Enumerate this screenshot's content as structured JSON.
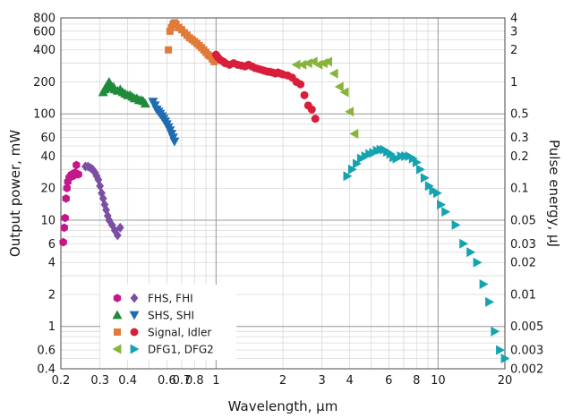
{
  "chart_data": {
    "type": "scatter",
    "xlabel": "Wavelength, µm",
    "ylabel": "Output power, mW",
    "y2label": "Pulse energy, µJ",
    "xscale": "log",
    "yscale": "log",
    "xlim": [
      0.2,
      20
    ],
    "ylim": [
      0.4,
      800
    ],
    "y2lim": [
      0.002,
      4
    ],
    "grid": true,
    "legend_position": "bottom-left",
    "xticks": [
      {
        "value": 0.2,
        "label": "0.2"
      },
      {
        "value": 0.3,
        "label": "0.3"
      },
      {
        "value": 0.4,
        "label": "0.4"
      },
      {
        "value": 0.6,
        "label": "0.6"
      },
      {
        "value": 0.7,
        "label": "0.7"
      },
      {
        "value": 0.8,
        "label": "0.8"
      },
      {
        "value": 1,
        "label": "1"
      },
      {
        "value": 2,
        "label": "2"
      },
      {
        "value": 3,
        "label": "3"
      },
      {
        "value": 4,
        "label": "4"
      },
      {
        "value": 6,
        "label": "6"
      },
      {
        "value": 8,
        "label": "8"
      },
      {
        "value": 10,
        "label": "10"
      },
      {
        "value": 20,
        "label": "20"
      }
    ],
    "yticks": [
      {
        "value": 0.4,
        "label": "0.4"
      },
      {
        "value": 0.6,
        "label": "0.6"
      },
      {
        "value": 1,
        "label": "1"
      },
      {
        "value": 2,
        "label": "2"
      },
      {
        "value": 4,
        "label": "4"
      },
      {
        "value": 6,
        "label": "6"
      },
      {
        "value": 10,
        "label": "10"
      },
      {
        "value": 20,
        "label": "20"
      },
      {
        "value": 40,
        "label": "40"
      },
      {
        "value": 60,
        "label": "60"
      },
      {
        "value": 100,
        "label": "100"
      },
      {
        "value": 200,
        "label": "200"
      },
      {
        "value": 400,
        "label": "400"
      },
      {
        "value": 600,
        "label": "600"
      },
      {
        "value": 800,
        "label": "800"
      }
    ],
    "y2ticks": [
      {
        "value": 0.002,
        "label": "0.002"
      },
      {
        "value": 0.003,
        "label": "0.003"
      },
      {
        "value": 0.005,
        "label": "0.005"
      },
      {
        "value": 0.01,
        "label": "0.01"
      },
      {
        "value": 0.02,
        "label": "0.02"
      },
      {
        "value": 0.03,
        "label": "0.03"
      },
      {
        "value": 0.05,
        "label": "0.05"
      },
      {
        "value": 0.1,
        "label": "0.1"
      },
      {
        "value": 0.2,
        "label": "0.2"
      },
      {
        "value": 0.3,
        "label": "0.3"
      },
      {
        "value": 0.5,
        "label": "0.5"
      },
      {
        "value": 1,
        "label": "1"
      },
      {
        "value": 2,
        "label": "2"
      },
      {
        "value": 3,
        "label": "3"
      },
      {
        "value": 4,
        "label": "4"
      }
    ],
    "legend": [
      {
        "label": "FHS, FHI",
        "markers": [
          {
            "shape": "hexagon",
            "color": "#c2188b"
          },
          {
            "shape": "diamond",
            "color": "#7b4fa3"
          }
        ]
      },
      {
        "label": "SHS, SHI",
        "markers": [
          {
            "shape": "triangle-up",
            "color": "#1f8a3a"
          },
          {
            "shape": "triangle-down",
            "color": "#1f6cb0"
          }
        ]
      },
      {
        "label": "Signal, Idler",
        "markers": [
          {
            "shape": "square",
            "color": "#e07b39"
          },
          {
            "shape": "circle",
            "color": "#d81e3a"
          }
        ]
      },
      {
        "label": "DFG1, DFG2",
        "markers": [
          {
            "shape": "triangle-left",
            "color": "#86b53a"
          },
          {
            "shape": "triangle-right",
            "color": "#14a3b0"
          }
        ]
      }
    ],
    "series": [
      {
        "marker": "hexagon",
        "color": "#c2188b",
        "x": [
          0.205,
          0.207,
          0.209,
          0.211,
          0.213,
          0.215,
          0.218,
          0.221,
          0.224,
          0.227,
          0.231,
          0.235,
          0.24
        ],
        "y": [
          6.2,
          8.5,
          10.5,
          16,
          20,
          23,
          25,
          26,
          27,
          26,
          28,
          33,
          27
        ]
      },
      {
        "marker": "diamond",
        "color": "#7b4fa3",
        "x": [
          0.258,
          0.265,
          0.272,
          0.278,
          0.285,
          0.29,
          0.295,
          0.3,
          0.305,
          0.31,
          0.315,
          0.32,
          0.325,
          0.33,
          0.34,
          0.35,
          0.36,
          0.37
        ],
        "y": [
          32,
          32,
          31,
          30,
          28,
          26,
          24,
          21,
          18,
          16,
          14,
          12.5,
          11,
          10,
          9,
          8,
          7.2,
          8.5
        ]
      },
      {
        "marker": "triangle-up",
        "color": "#1f8a3a",
        "x": [
          0.31,
          0.315,
          0.32,
          0.325,
          0.33,
          0.335,
          0.34,
          0.345,
          0.35,
          0.36,
          0.37,
          0.38,
          0.39,
          0.4,
          0.41,
          0.42,
          0.43,
          0.44,
          0.45,
          0.46,
          0.47,
          0.48
        ],
        "y": [
          160,
          170,
          180,
          190,
          200,
          185,
          175,
          180,
          170,
          165,
          170,
          160,
          155,
          150,
          150,
          145,
          140,
          140,
          135,
          135,
          132,
          125
        ]
      },
      {
        "marker": "triangle-down",
        "color": "#1f6cb0",
        "x": [
          0.52,
          0.53,
          0.54,
          0.55,
          0.56,
          0.57,
          0.58,
          0.59,
          0.6,
          0.61,
          0.62,
          0.63,
          0.64,
          0.65
        ],
        "y": [
          130,
          120,
          110,
          105,
          100,
          95,
          90,
          85,
          80,
          75,
          70,
          65,
          60,
          55
        ]
      },
      {
        "marker": "square",
        "color": "#e07b39",
        "x": [
          0.61,
          0.62,
          0.63,
          0.64,
          0.65,
          0.66,
          0.68,
          0.7,
          0.72,
          0.74,
          0.76,
          0.78,
          0.8,
          0.82,
          0.84,
          0.86,
          0.88,
          0.9,
          0.92,
          0.94,
          0.96,
          0.98
        ],
        "y": [
          400,
          600,
          650,
          700,
          720,
          700,
          650,
          620,
          580,
          550,
          520,
          500,
          480,
          460,
          440,
          420,
          400,
          380,
          360,
          350,
          330,
          310
        ]
      },
      {
        "marker": "circle",
        "color": "#d81e3a",
        "x": [
          1.0,
          1.02,
          1.05,
          1.08,
          1.1,
          1.15,
          1.2,
          1.25,
          1.3,
          1.35,
          1.4,
          1.45,
          1.5,
          1.55,
          1.6,
          1.65,
          1.7,
          1.75,
          1.8,
          1.85,
          1.9,
          1.95,
          2.0,
          2.1,
          2.2,
          2.3,
          2.4,
          2.5,
          2.6,
          2.7,
          2.8
        ],
        "y": [
          360,
          340,
          320,
          310,
          300,
          290,
          300,
          290,
          285,
          280,
          290,
          280,
          270,
          265,
          260,
          255,
          250,
          248,
          245,
          240,
          245,
          240,
          235,
          230,
          220,
          200,
          190,
          150,
          120,
          110,
          90
        ]
      },
      {
        "marker": "triangle-left",
        "color": "#86b53a",
        "x": [
          2.3,
          2.45,
          2.6,
          2.75,
          2.9,
          3.05,
          3.2,
          3.4,
          3.6,
          3.8,
          4.0,
          4.2
        ],
        "y": [
          290,
          290,
          300,
          310,
          290,
          300,
          310,
          240,
          180,
          160,
          105,
          65
        ]
      },
      {
        "marker": "triangle-right",
        "color": "#14a3b0",
        "x": [
          3.9,
          4.1,
          4.3,
          4.5,
          4.7,
          4.9,
          5.1,
          5.3,
          5.5,
          5.7,
          5.9,
          6.1,
          6.3,
          6.5,
          6.8,
          7.1,
          7.4,
          7.7,
          8.0,
          8.3,
          8.7,
          9.1,
          9.5,
          9.9,
          10.3,
          10.8,
          12.0,
          13.0,
          14.0,
          15.0,
          16.0,
          17.0,
          18.0,
          19.0,
          20.0
        ],
        "y": [
          26,
          30,
          34,
          38,
          40,
          42,
          43,
          45,
          46,
          46,
          44,
          42,
          39,
          38,
          40,
          40,
          40,
          38,
          35,
          30,
          25,
          21,
          19,
          18,
          14,
          12,
          9,
          6,
          5,
          4,
          2.5,
          1.7,
          0.9,
          0.6,
          0.5
        ]
      }
    ]
  }
}
